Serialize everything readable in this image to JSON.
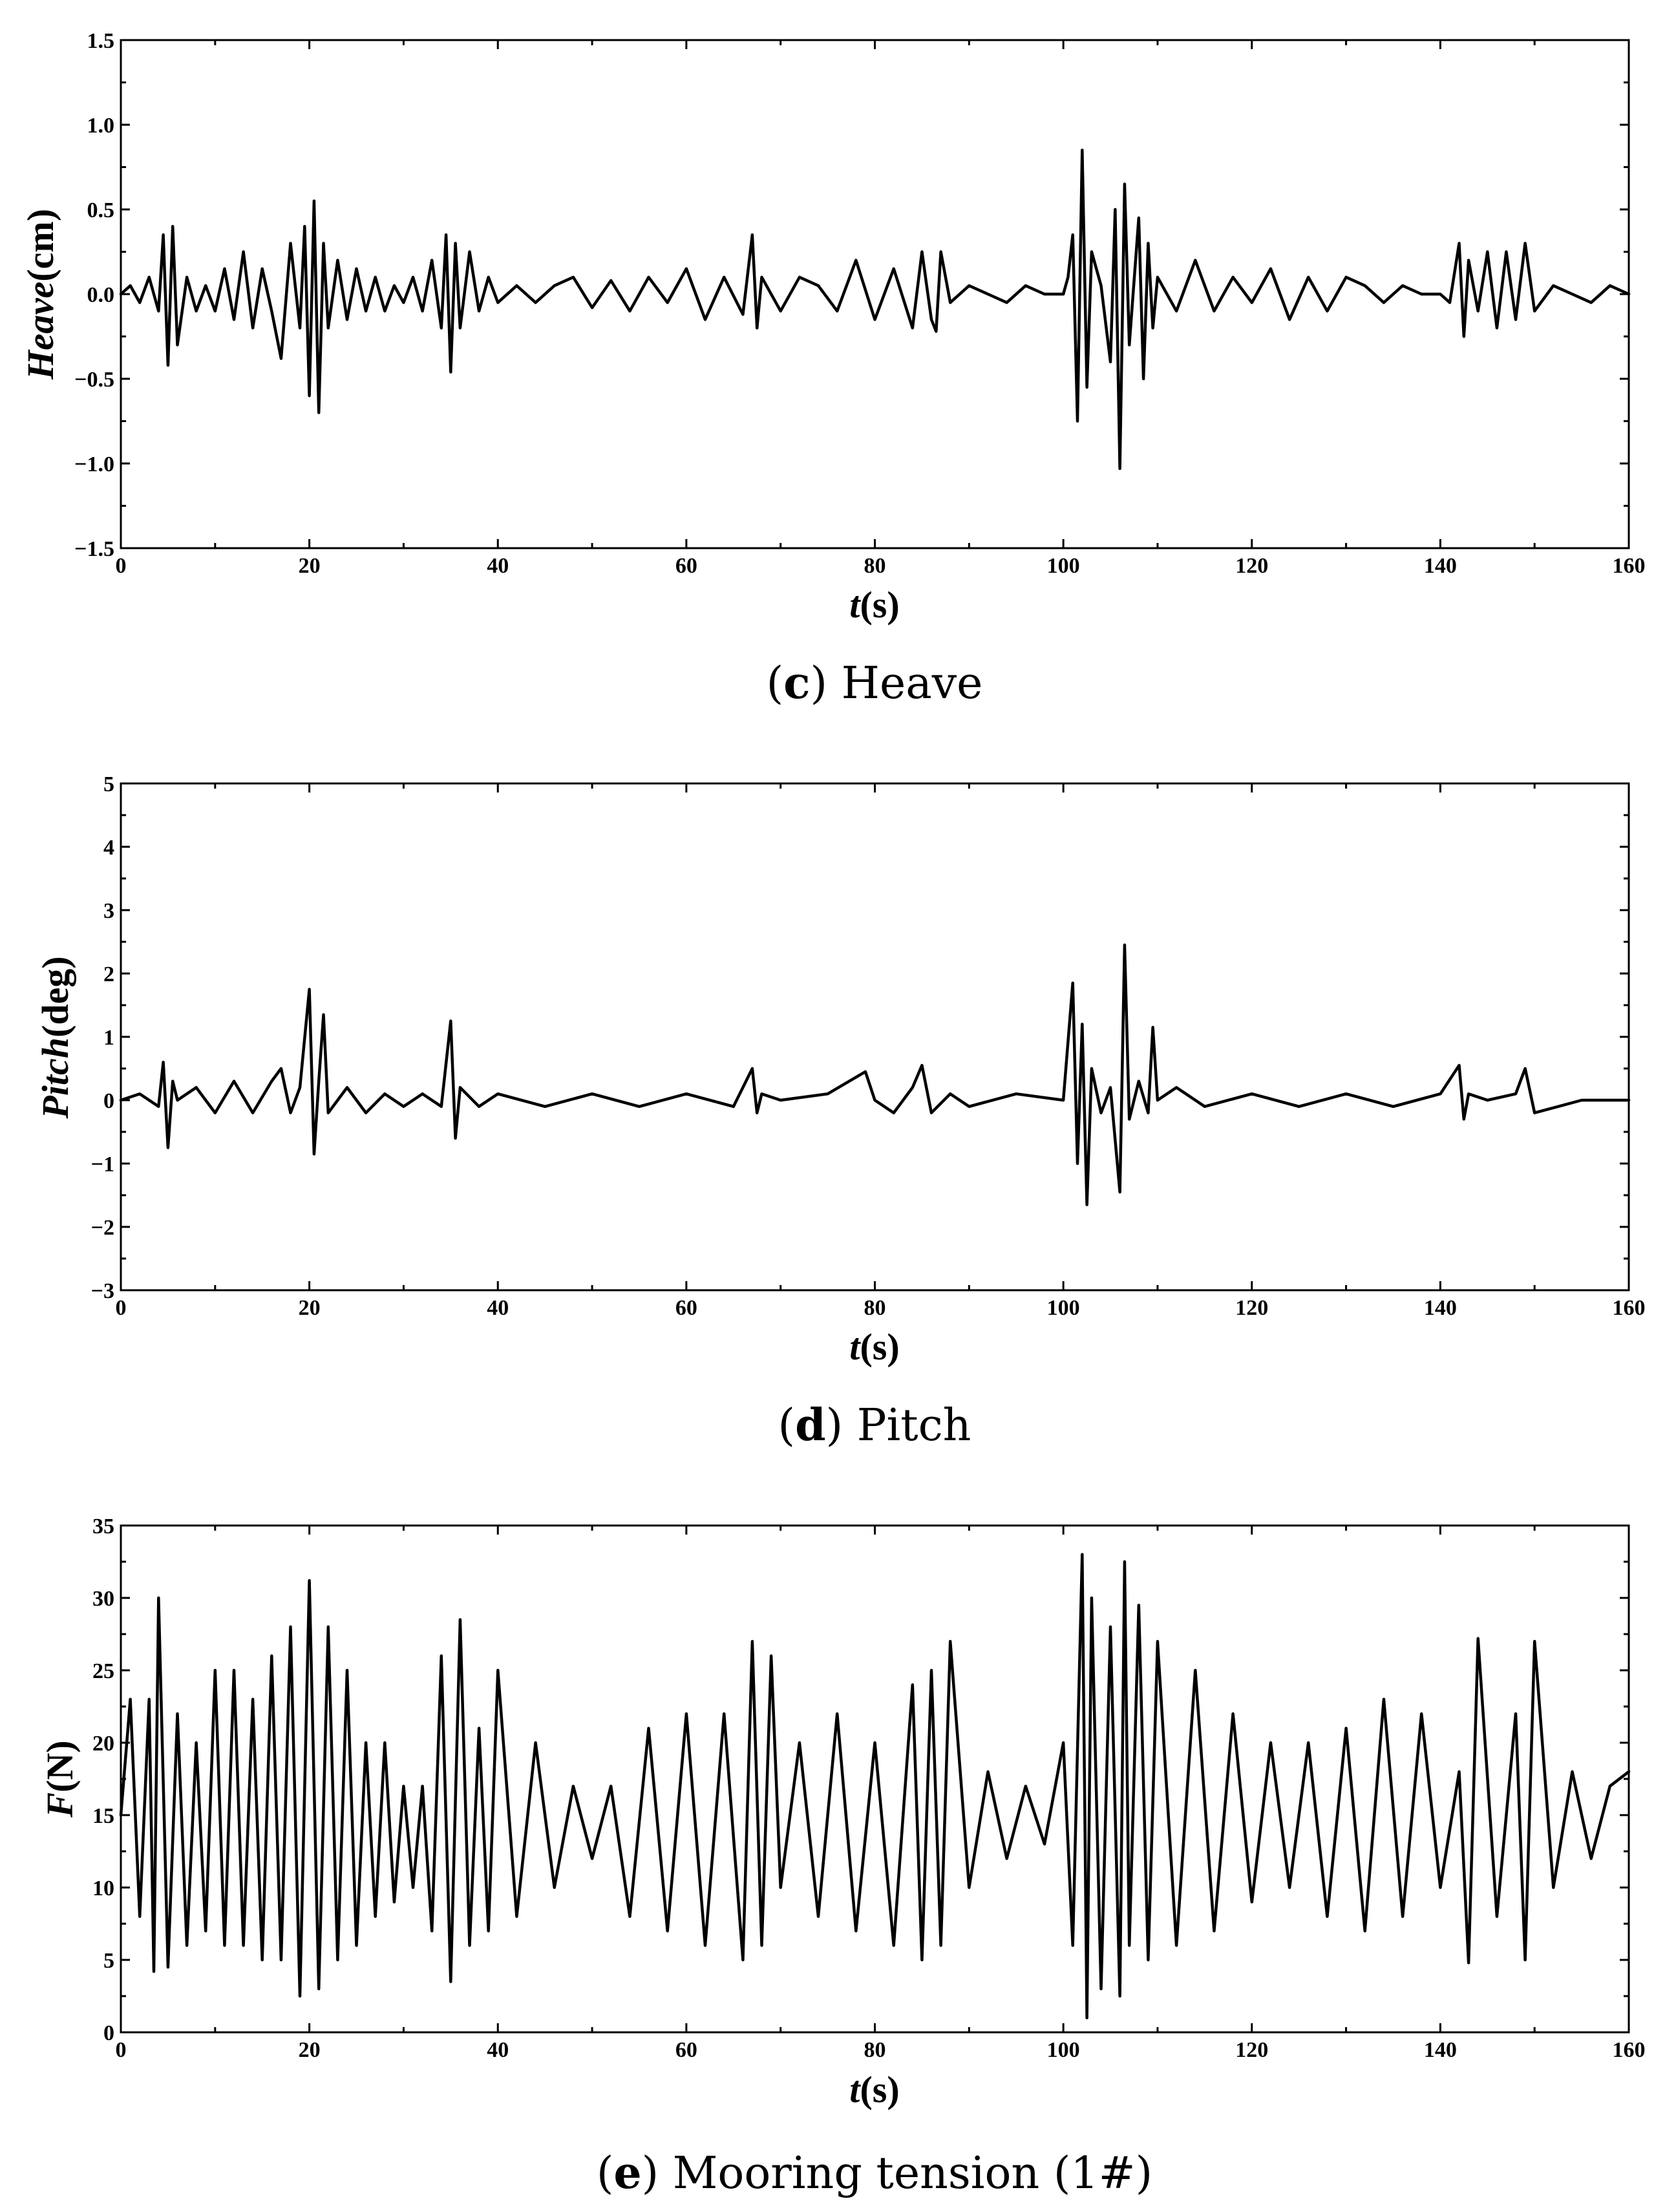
{
  "chart_data": [
    {
      "type": "line",
      "panel": "c",
      "caption_letter": "c",
      "caption_text": " Heave",
      "ylabel_italic": "Heave",
      "ylabel_unit": "(cm)",
      "xlabel_italic": "t",
      "xlabel_unit": "(s)",
      "xlim": [
        0,
        160
      ],
      "ylim": [
        -1.5,
        1.5
      ],
      "xticks": [
        0,
        20,
        40,
        60,
        80,
        100,
        120,
        140,
        160
      ],
      "yticks": [
        -1.5,
        -1.0,
        -0.5,
        0.0,
        0.5,
        1.0,
        1.5
      ],
      "ytick_labels": [
        "−1.5",
        "−1.0",
        "−0.5",
        "0.0",
        "0.5",
        "1.0",
        "1.5"
      ],
      "grid": false,
      "series": [
        {
          "color": "#000000",
          "x": [
            0,
            1,
            2,
            3,
            4,
            4.5,
            5,
            5.5,
            6,
            7,
            8,
            9,
            10,
            11,
            12,
            13,
            14,
            15,
            16,
            17,
            18,
            19,
            19.5,
            20,
            20.5,
            21,
            21.5,
            22,
            23,
            24,
            25,
            26,
            27,
            28,
            29,
            30,
            31,
            32,
            33,
            34,
            34.5,
            35,
            35.5,
            36,
            37,
            38,
            39,
            40,
            42,
            44,
            46,
            48,
            50,
            52,
            54,
            56,
            58,
            60,
            62,
            64,
            66,
            67,
            67.5,
            68,
            70,
            72,
            74,
            76,
            78,
            80,
            82,
            84,
            85,
            86,
            86.5,
            87,
            88,
            90,
            92,
            94,
            96,
            98,
            100,
            100.5,
            101,
            101.5,
            102,
            102.5,
            103,
            104,
            105,
            105.5,
            106,
            106.5,
            107,
            108,
            108.5,
            109,
            109.5,
            110,
            112,
            114,
            116,
            118,
            120,
            122,
            124,
            126,
            128,
            130,
            132,
            134,
            136,
            138,
            140,
            141,
            142,
            142.5,
            143,
            144,
            145,
            146,
            147,
            148,
            149,
            150,
            152,
            154,
            156,
            158,
            160
          ],
          "values": [
            0.0,
            0.05,
            -0.05,
            0.1,
            -0.1,
            0.35,
            -0.42,
            0.4,
            -0.3,
            0.1,
            -0.1,
            0.05,
            -0.1,
            0.15,
            -0.15,
            0.25,
            -0.2,
            0.15,
            -0.1,
            -0.38,
            0.3,
            -0.2,
            0.4,
            -0.6,
            0.55,
            -0.7,
            0.3,
            -0.2,
            0.2,
            -0.15,
            0.15,
            -0.1,
            0.1,
            -0.1,
            0.05,
            -0.05,
            0.1,
            -0.1,
            0.2,
            -0.2,
            0.35,
            -0.46,
            0.3,
            -0.2,
            0.25,
            -0.1,
            0.1,
            -0.05,
            0.05,
            -0.05,
            0.05,
            0.1,
            -0.08,
            0.08,
            -0.1,
            0.1,
            -0.05,
            0.15,
            -0.15,
            0.1,
            -0.12,
            0.35,
            -0.2,
            0.1,
            -0.1,
            0.1,
            0.05,
            -0.1,
            0.2,
            -0.15,
            0.15,
            -0.2,
            0.25,
            -0.15,
            -0.22,
            0.25,
            -0.05,
            0.05,
            0.0,
            -0.05,
            0.05,
            0.0,
            0.0,
            0.1,
            0.35,
            -0.75,
            0.85,
            -0.55,
            0.25,
            0.05,
            -0.4,
            0.5,
            -1.03,
            0.65,
            -0.3,
            0.45,
            -0.5,
            0.3,
            -0.2,
            0.1,
            -0.1,
            0.2,
            -0.1,
            0.1,
            -0.05,
            0.15,
            -0.15,
            0.1,
            -0.1,
            0.1,
            0.05,
            -0.05,
            0.05,
            0.0,
            0.0,
            -0.05,
            0.3,
            -0.25,
            0.2,
            -0.1,
            0.25,
            -0.2,
            0.25,
            -0.15,
            0.3,
            -0.1,
            0.05,
            0.0,
            -0.05,
            0.05,
            0.0
          ]
        }
      ]
    },
    {
      "type": "line",
      "panel": "d",
      "caption_letter": "d",
      "caption_text": " Pitch",
      "ylabel_italic": "Pitch",
      "ylabel_unit": "(deg)",
      "xlabel_italic": "t",
      "xlabel_unit": "(s)",
      "xlim": [
        0,
        160
      ],
      "ylim": [
        -3,
        5
      ],
      "xticks": [
        0,
        20,
        40,
        60,
        80,
        100,
        120,
        140,
        160
      ],
      "yticks": [
        -3,
        -2,
        -1,
        0,
        1,
        2,
        3,
        4,
        5
      ],
      "ytick_labels": [
        "−3",
        "−2",
        "−1",
        "0",
        "1",
        "2",
        "3",
        "4",
        "5"
      ],
      "grid": false,
      "series": [
        {
          "color": "#000000",
          "x": [
            0,
            2,
            4,
            4.5,
            5,
            5.5,
            6,
            8,
            10,
            12,
            14,
            16,
            17,
            18,
            19,
            20,
            20.5,
            21,
            21.5,
            22,
            24,
            26,
            28,
            30,
            32,
            34,
            35,
            35.5,
            36,
            38,
            40,
            45,
            50,
            55,
            60,
            65,
            67,
            67.5,
            68,
            70,
            75,
            79,
            80,
            82,
            84,
            85,
            86,
            88,
            90,
            95,
            100,
            101,
            101.5,
            102,
            102.5,
            103,
            104,
            105,
            106,
            106.5,
            107,
            108,
            109,
            109.5,
            110,
            112,
            115,
            120,
            125,
            130,
            135,
            140,
            142,
            142.5,
            143,
            145,
            148,
            149,
            150,
            155,
            160
          ],
          "values": [
            0.0,
            0.1,
            -0.1,
            0.6,
            -0.75,
            0.3,
            0.0,
            0.2,
            -0.2,
            0.3,
            -0.2,
            0.3,
            0.5,
            -0.2,
            0.2,
            1.75,
            -0.85,
            0.3,
            1.35,
            -0.2,
            0.2,
            -0.2,
            0.1,
            -0.1,
            0.1,
            -0.1,
            1.25,
            -0.6,
            0.2,
            -0.1,
            0.1,
            -0.1,
            0.1,
            -0.1,
            0.1,
            -0.1,
            0.5,
            -0.2,
            0.1,
            0.0,
            0.1,
            0.45,
            0.0,
            -0.2,
            0.2,
            0.55,
            -0.2,
            0.1,
            -0.1,
            0.1,
            0.0,
            1.85,
            -1.0,
            1.2,
            -1.65,
            0.5,
            -0.2,
            0.2,
            -1.45,
            2.45,
            -0.3,
            0.3,
            -0.2,
            1.15,
            0.0,
            0.2,
            -0.1,
            0.1,
            -0.1,
            0.1,
            -0.1,
            0.1,
            0.55,
            -0.3,
            0.1,
            0.0,
            0.1,
            0.5,
            -0.2,
            0.0,
            0.0
          ]
        }
      ]
    },
    {
      "type": "line",
      "panel": "e",
      "caption_letter": "e",
      "caption_text": " Mooring tension (1#)",
      "ylabel_italic": "F",
      "ylabel_unit": "(N)",
      "xlabel_italic": "t",
      "xlabel_unit": "(s)",
      "xlim": [
        0,
        160
      ],
      "ylim": [
        0,
        35
      ],
      "xticks": [
        0,
        20,
        40,
        60,
        80,
        100,
        120,
        140,
        160
      ],
      "yticks": [
        0,
        5,
        10,
        15,
        20,
        25,
        30,
        35
      ],
      "ytick_labels": [
        "0",
        "5",
        "10",
        "15",
        "20",
        "25",
        "30",
        "35"
      ],
      "grid": false,
      "series": [
        {
          "color": "#000000",
          "x": [
            0,
            1,
            2,
            3,
            3.5,
            4,
            5,
            6,
            7,
            8,
            9,
            10,
            11,
            12,
            13,
            14,
            15,
            16,
            17,
            18,
            19,
            20,
            21,
            22,
            23,
            24,
            25,
            26,
            27,
            28,
            29,
            30,
            31,
            32,
            33,
            34,
            35,
            36,
            37,
            38,
            39,
            40,
            42,
            44,
            46,
            48,
            50,
            52,
            54,
            56,
            58,
            60,
            62,
            64,
            66,
            67,
            68,
            69,
            70,
            72,
            74,
            76,
            78,
            80,
            82,
            84,
            85,
            86,
            87,
            88,
            90,
            92,
            94,
            96,
            98,
            100,
            101,
            102,
            102.5,
            103,
            104,
            105,
            106,
            106.5,
            107,
            108,
            109,
            110,
            112,
            114,
            116,
            118,
            120,
            122,
            124,
            126,
            128,
            130,
            132,
            134,
            136,
            138,
            140,
            142,
            143,
            144,
            146,
            148,
            149,
            150,
            152,
            154,
            156,
            158,
            160
          ],
          "values": [
            15,
            23,
            8,
            23,
            4.2,
            30,
            4.5,
            22,
            6,
            20,
            7,
            25,
            6,
            25,
            6,
            23,
            5,
            26,
            5,
            28,
            2.5,
            31.2,
            3,
            28,
            5,
            25,
            6,
            20,
            8,
            20,
            9,
            17,
            10,
            17,
            7,
            26,
            3.5,
            28.5,
            6,
            21,
            7,
            25,
            8,
            20,
            10,
            17,
            12,
            17,
            8,
            21,
            7,
            22,
            6,
            22,
            5,
            27,
            6,
            26,
            10,
            20,
            8,
            22,
            7,
            20,
            6,
            24,
            5,
            25,
            6,
            27,
            10,
            18,
            12,
            17,
            13,
            20,
            6,
            33,
            1,
            30,
            3,
            28,
            2.5,
            32.5,
            6,
            29.5,
            5,
            27,
            6,
            25,
            7,
            22,
            9,
            20,
            10,
            20,
            8,
            21,
            7,
            23,
            8,
            22,
            10,
            18,
            4.8,
            27.2,
            8,
            22,
            5,
            27,
            10,
            18,
            12,
            17,
            18
          ]
        }
      ]
    }
  ]
}
